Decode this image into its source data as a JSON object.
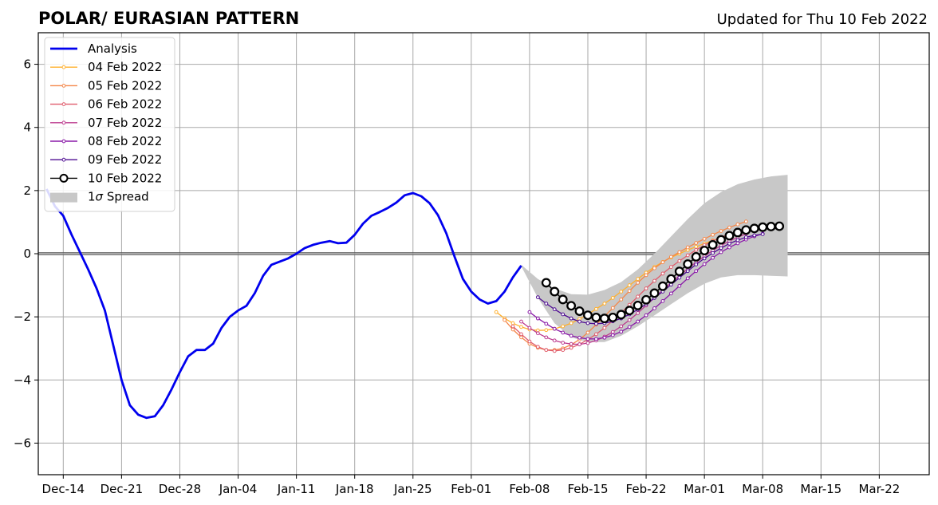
{
  "chart_data": {
    "type": "line",
    "title": "POLAR/ EURASIAN  PATTERN",
    "subtitle": "Updated for Thu 10 Feb 2022",
    "xlabel": "",
    "ylabel": "",
    "x_axis": "date",
    "xlim": [
      "2021-12-11",
      "2022-03-28"
    ],
    "ylim": [
      -7,
      7
    ],
    "x_ticks": [
      "Dec-14",
      "Dec-21",
      "Dec-28",
      "Jan-04",
      "Jan-11",
      "Jan-18",
      "Jan-25",
      "Feb-01",
      "Feb-08",
      "Feb-15",
      "Feb-22",
      "Mar-01",
      "Mar-08",
      "Mar-15",
      "Mar-22"
    ],
    "x_tick_dates": [
      "2021-12-14",
      "2021-12-21",
      "2021-12-28",
      "2022-01-04",
      "2022-01-11",
      "2022-01-18",
      "2022-01-25",
      "2022-02-01",
      "2022-02-08",
      "2022-02-15",
      "2022-02-22",
      "2022-03-01",
      "2022-03-08",
      "2022-03-15",
      "2022-03-22"
    ],
    "y_ticks": [
      "6",
      "4",
      "2",
      "0",
      "−2",
      "−4",
      "−6"
    ],
    "y_tick_values": [
      6,
      4,
      2,
      0,
      -2,
      -4,
      -6
    ],
    "grid": true,
    "zero_line": true,
    "legend_position": "top-left",
    "analysis": {
      "name": "Analysis",
      "color": "#0000ee",
      "points": [
        [
          "2021-12-12",
          2.05
        ],
        [
          "2021-12-13",
          1.5
        ],
        [
          "2021-12-14",
          1.2
        ],
        [
          "2021-12-15",
          0.6
        ],
        [
          "2021-12-16",
          0.05
        ],
        [
          "2021-12-17",
          -0.5
        ],
        [
          "2021-12-18",
          -1.1
        ],
        [
          "2021-12-19",
          -1.8
        ],
        [
          "2021-12-20",
          -2.9
        ],
        [
          "2021-12-21",
          -4.0
        ],
        [
          "2021-12-22",
          -4.8
        ],
        [
          "2021-12-23",
          -5.1
        ],
        [
          "2021-12-24",
          -5.2
        ],
        [
          "2021-12-25",
          -5.15
        ],
        [
          "2021-12-26",
          -4.8
        ],
        [
          "2021-12-27",
          -4.3
        ],
        [
          "2021-12-28",
          -3.75
        ],
        [
          "2021-12-29",
          -3.25
        ],
        [
          "2021-12-30",
          -3.05
        ],
        [
          "2021-12-31",
          -3.05
        ],
        [
          "2022-01-01",
          -2.85
        ],
        [
          "2022-01-02",
          -2.35
        ],
        [
          "2022-01-03",
          -2.0
        ],
        [
          "2022-01-04",
          -1.8
        ],
        [
          "2022-01-05",
          -1.65
        ],
        [
          "2022-01-06",
          -1.25
        ],
        [
          "2022-01-07",
          -0.7
        ],
        [
          "2022-01-08",
          -0.35
        ],
        [
          "2022-01-09",
          -0.25
        ],
        [
          "2022-01-10",
          -0.15
        ],
        [
          "2022-01-11",
          0.0
        ],
        [
          "2022-01-12",
          0.18
        ],
        [
          "2022-01-13",
          0.28
        ],
        [
          "2022-01-14",
          0.35
        ],
        [
          "2022-01-15",
          0.4
        ],
        [
          "2022-01-16",
          0.33
        ],
        [
          "2022-01-17",
          0.35
        ],
        [
          "2022-01-18",
          0.6
        ],
        [
          "2022-01-19",
          0.95
        ],
        [
          "2022-01-20",
          1.2
        ],
        [
          "2022-01-21",
          1.32
        ],
        [
          "2022-01-22",
          1.45
        ],
        [
          "2022-01-23",
          1.62
        ],
        [
          "2022-01-24",
          1.85
        ],
        [
          "2022-01-25",
          1.92
        ],
        [
          "2022-01-26",
          1.82
        ],
        [
          "2022-01-27",
          1.6
        ],
        [
          "2022-01-28",
          1.22
        ],
        [
          "2022-01-29",
          0.65
        ],
        [
          "2022-01-30",
          -0.1
        ],
        [
          "2022-01-31",
          -0.8
        ],
        [
          "2022-02-01",
          -1.2
        ],
        [
          "2022-02-02",
          -1.45
        ],
        [
          "2022-02-03",
          -1.58
        ],
        [
          "2022-02-04",
          -1.5
        ],
        [
          "2022-02-05",
          -1.2
        ],
        [
          "2022-02-06",
          -0.75
        ],
        [
          "2022-02-07",
          -0.38
        ]
      ]
    },
    "spread": {
      "name": "1σ Spread",
      "color": "#c8c8c8",
      "upper": [
        [
          "2022-02-07",
          -0.35
        ],
        [
          "2022-02-09",
          -0.8
        ],
        [
          "2022-02-11",
          -1.1
        ],
        [
          "2022-02-13",
          -1.28
        ],
        [
          "2022-02-15",
          -1.3
        ],
        [
          "2022-02-17",
          -1.15
        ],
        [
          "2022-02-19",
          -0.9
        ],
        [
          "2022-02-21",
          -0.5
        ],
        [
          "2022-02-23",
          0.0
        ],
        [
          "2022-02-25",
          0.55
        ],
        [
          "2022-02-27",
          1.1
        ],
        [
          "2022-03-01",
          1.6
        ],
        [
          "2022-03-03",
          1.95
        ],
        [
          "2022-03-05",
          2.2
        ],
        [
          "2022-03-07",
          2.35
        ],
        [
          "2022-03-09",
          2.45
        ],
        [
          "2022-03-11",
          2.5
        ]
      ],
      "lower": [
        [
          "2022-02-07",
          -0.4
        ],
        [
          "2022-02-09",
          -1.4
        ],
        [
          "2022-02-11",
          -2.2
        ],
        [
          "2022-02-13",
          -2.65
        ],
        [
          "2022-02-15",
          -2.8
        ],
        [
          "2022-02-17",
          -2.8
        ],
        [
          "2022-02-19",
          -2.6
        ],
        [
          "2022-02-21",
          -2.3
        ],
        [
          "2022-02-23",
          -1.95
        ],
        [
          "2022-02-25",
          -1.6
        ],
        [
          "2022-02-27",
          -1.25
        ],
        [
          "2022-03-01",
          -0.95
        ],
        [
          "2022-03-03",
          -0.75
        ],
        [
          "2022-03-05",
          -0.68
        ],
        [
          "2022-03-07",
          -0.68
        ],
        [
          "2022-03-09",
          -0.7
        ],
        [
          "2022-03-11",
          -0.72
        ]
      ]
    },
    "series": [
      {
        "name": "04 Feb 2022",
        "color": "#ffb02e",
        "start": "2022-02-04",
        "values": [
          -1.85,
          -2.05,
          -2.2,
          -2.32,
          -2.4,
          -2.43,
          -2.42,
          -2.38,
          -2.3,
          -2.2,
          -2.07,
          -1.92,
          -1.75,
          -1.58,
          -1.4,
          -1.2,
          -1.0,
          -0.8,
          -0.6,
          -0.42,
          -0.26,
          -0.12,
          0.0,
          0.12,
          0.22,
          0.32,
          0.42,
          0.5,
          0.58,
          0.65,
          0.72
        ]
      },
      {
        "name": "05 Feb 2022",
        "color": "#f4874a",
        "start": "2022-02-05",
        "values": [
          -2.1,
          -2.4,
          -2.65,
          -2.85,
          -2.98,
          -3.05,
          -3.05,
          -3.0,
          -2.88,
          -2.72,
          -2.5,
          -2.25,
          -1.98,
          -1.72,
          -1.45,
          -1.18,
          -0.92,
          -0.68,
          -0.46,
          -0.27,
          -0.1,
          0.05,
          0.2,
          0.34,
          0.47,
          0.6,
          0.72,
          0.83,
          0.93,
          1.02
        ]
      },
      {
        "name": "06 Feb 2022",
        "color": "#e05c6c",
        "start": "2022-02-06",
        "values": [
          -2.3,
          -2.55,
          -2.78,
          -2.95,
          -3.05,
          -3.08,
          -3.05,
          -2.98,
          -2.87,
          -2.72,
          -2.55,
          -2.35,
          -2.12,
          -1.88,
          -1.62,
          -1.36,
          -1.1,
          -0.86,
          -0.63,
          -0.42,
          -0.23,
          -0.05,
          0.12,
          0.27,
          0.4,
          0.52,
          0.62,
          0.7
        ]
      },
      {
        "name": "07 Feb 2022",
        "color": "#bc3a8e",
        "start": "2022-02-07",
        "values": [
          -2.15,
          -2.35,
          -2.52,
          -2.65,
          -2.75,
          -2.82,
          -2.86,
          -2.87,
          -2.83,
          -2.75,
          -2.63,
          -2.48,
          -2.3,
          -2.1,
          -1.88,
          -1.64,
          -1.4,
          -1.16,
          -0.92,
          -0.7,
          -0.48,
          -0.27,
          -0.08,
          0.1,
          0.26,
          0.4,
          0.52,
          0.63
        ]
      },
      {
        "name": "08 Feb 2022",
        "color": "#8a1aa8",
        "start": "2022-02-08",
        "values": [
          -1.85,
          -2.05,
          -2.22,
          -2.38,
          -2.5,
          -2.6,
          -2.66,
          -2.7,
          -2.7,
          -2.66,
          -2.58,
          -2.47,
          -2.32,
          -2.15,
          -1.95,
          -1.73,
          -1.5,
          -1.26,
          -1.02,
          -0.78,
          -0.55,
          -0.33,
          -0.13,
          0.05,
          0.2,
          0.33,
          0.45,
          0.55,
          0.63
        ]
      },
      {
        "name": "09 Feb 2022",
        "color": "#4e0c92",
        "start": "2022-02-09",
        "values": [
          -1.38,
          -1.58,
          -1.76,
          -1.92,
          -2.05,
          -2.15,
          -2.2,
          -2.22,
          -2.2,
          -2.14,
          -2.05,
          -1.92,
          -1.77,
          -1.6,
          -1.4,
          -1.2,
          -0.98,
          -0.76,
          -0.55,
          -0.34,
          -0.15,
          0.02,
          0.18,
          0.32,
          0.43,
          0.52,
          0.58,
          0.62
        ]
      },
      {
        "name": "10 Feb 2022",
        "color": "#000000",
        "start": "2022-02-10",
        "values": [
          -0.92,
          -1.2,
          -1.45,
          -1.65,
          -1.82,
          -1.95,
          -2.02,
          -2.05,
          -2.02,
          -1.93,
          -1.8,
          -1.64,
          -1.46,
          -1.25,
          -1.03,
          -0.8,
          -0.56,
          -0.33,
          -0.1,
          0.1,
          0.28,
          0.44,
          0.57,
          0.67,
          0.75,
          0.8,
          0.84,
          0.86,
          0.87
        ]
      }
    ]
  }
}
